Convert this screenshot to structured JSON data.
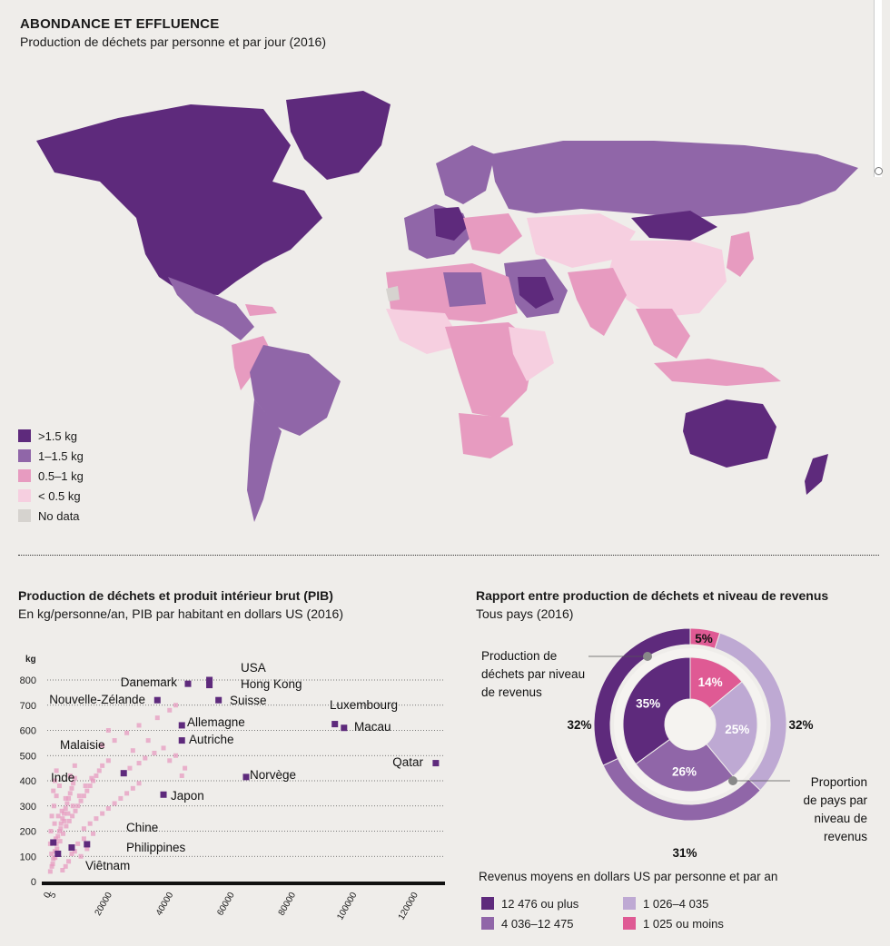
{
  "header": {
    "title": "ABONDANCE ET EFFLUENCE",
    "subtitle": "Production de déchets par personne et par jour (2016)"
  },
  "map_legend": [
    {
      "label": ">1.5 kg",
      "color": "#5e2a7c"
    },
    {
      "label": "1–1.5 kg",
      "color": "#9066a8"
    },
    {
      "label": "0.5–1 kg",
      "color": "#e79bc0"
    },
    {
      "label": "< 0.5 kg",
      "color": "#f6cfe0"
    },
    {
      "label": "No data",
      "color": "#d6d3cf"
    }
  ],
  "scatter_section": {
    "title": "Production de déchets et produit intérieur brut (PIB)",
    "subtitle": "En kg/personne/an, PIB par habitant en dollars US (2016)"
  },
  "donut_section": {
    "title": "Rapport entre production de déchets et niveau de revenus",
    "subtitle": "Tous pays (2016)",
    "outer_label": "Production de déchets par niveau de revenus",
    "inner_label": "Proportion de pays par niveau de revenus",
    "income_legend_title": "Revenus moyens en dollars US par personne et par an"
  },
  "chart_data": [
    {
      "type": "scatter",
      "ylabel": "kg",
      "ylim": [
        0,
        800
      ],
      "xlim": [
        0,
        130000
      ],
      "y_ticks": [
        0,
        100,
        200,
        300,
        400,
        500,
        600,
        700,
        800
      ],
      "x_ticks": [
        0,
        5,
        20000,
        40000,
        60000,
        80000,
        100000,
        120000
      ],
      "labeled_points": [
        {
          "name": "USA",
          "x": 53000,
          "y": 800
        },
        {
          "name": "Hong Kong",
          "x": 53000,
          "y": 780
        },
        {
          "name": "Danemark",
          "x": 46000,
          "y": 785
        },
        {
          "name": "Nouvelle-Zélande",
          "x": 36000,
          "y": 720
        },
        {
          "name": "Suisse",
          "x": 56000,
          "y": 720
        },
        {
          "name": "Luxembourg",
          "x": 94000,
          "y": 625
        },
        {
          "name": "Macau",
          "x": 97000,
          "y": 610
        },
        {
          "name": "Allemagne",
          "x": 44000,
          "y": 620
        },
        {
          "name": "Autriche",
          "x": 44000,
          "y": 560
        },
        {
          "name": "Qatar",
          "x": 127000,
          "y": 470
        },
        {
          "name": "Malaisie",
          "x": 25000,
          "y": 430
        },
        {
          "name": "Norvège",
          "x": 65000,
          "y": 415
        },
        {
          "name": "Inde",
          "x": 2000,
          "y": 155
        },
        {
          "name": "Japon",
          "x": 38000,
          "y": 345
        },
        {
          "name": "Chine",
          "x": 8000,
          "y": 135
        },
        {
          "name": "Philippines",
          "x": 13000,
          "y": 148
        },
        {
          "name": "Viêtnam",
          "x": 3500,
          "y": 110
        }
      ],
      "other_points": [
        [
          1500,
          60
        ],
        [
          2000,
          90
        ],
        [
          2500,
          120
        ],
        [
          3000,
          150
        ],
        [
          3500,
          180
        ],
        [
          4000,
          200
        ],
        [
          4500,
          230
        ],
        [
          5000,
          250
        ],
        [
          5500,
          270
        ],
        [
          6000,
          290
        ],
        [
          6500,
          310
        ],
        [
          7000,
          330
        ],
        [
          7500,
          350
        ],
        [
          8000,
          370
        ],
        [
          8500,
          390
        ],
        [
          9000,
          410
        ],
        [
          2200,
          300
        ],
        [
          3000,
          340
        ],
        [
          4000,
          380
        ],
        [
          2500,
          400
        ],
        [
          1000,
          40
        ],
        [
          1800,
          70
        ],
        [
          2600,
          95
        ],
        [
          3200,
          130
        ],
        [
          4200,
          160
        ],
        [
          5200,
          190
        ],
        [
          6200,
          220
        ],
        [
          7200,
          240
        ],
        [
          8200,
          260
        ],
        [
          9200,
          280
        ],
        [
          10000,
          300
        ],
        [
          11000,
          320
        ],
        [
          12000,
          340
        ],
        [
          13000,
          360
        ],
        [
          14000,
          380
        ],
        [
          15000,
          400
        ],
        [
          16000,
          420
        ],
        [
          17000,
          440
        ],
        [
          18000,
          460
        ],
        [
          20000,
          480
        ],
        [
          12000,
          210
        ],
        [
          14000,
          230
        ],
        [
          16000,
          250
        ],
        [
          18000,
          270
        ],
        [
          20000,
          290
        ],
        [
          22000,
          310
        ],
        [
          24000,
          330
        ],
        [
          26000,
          350
        ],
        [
          28000,
          370
        ],
        [
          30000,
          390
        ],
        [
          10000,
          150
        ],
        [
          12000,
          170
        ],
        [
          15000,
          190
        ],
        [
          9000,
          120
        ],
        [
          11000,
          100
        ],
        [
          7000,
          80
        ],
        [
          6000,
          60
        ],
        [
          5000,
          45
        ],
        [
          8000,
          110
        ],
        [
          13000,
          130
        ],
        [
          25000,
          430
        ],
        [
          27000,
          450
        ],
        [
          30000,
          470
        ],
        [
          32000,
          490
        ],
        [
          35000,
          510
        ],
        [
          38000,
          530
        ],
        [
          40000,
          480
        ],
        [
          42000,
          500
        ],
        [
          45000,
          450
        ],
        [
          44000,
          420
        ],
        [
          22000,
          560
        ],
        [
          26000,
          590
        ],
        [
          30000,
          620
        ],
        [
          36000,
          650
        ],
        [
          40000,
          680
        ],
        [
          42000,
          700
        ],
        [
          20000,
          600
        ],
        [
          18000,
          540
        ],
        [
          33000,
          560
        ],
        [
          28000,
          520
        ],
        [
          3000,
          440
        ],
        [
          2000,
          360
        ],
        [
          1500,
          260
        ],
        [
          1200,
          200
        ],
        [
          2400,
          230
        ],
        [
          3600,
          260
        ],
        [
          4800,
          280
        ],
        [
          6000,
          330
        ],
        [
          7500,
          420
        ],
        [
          9000,
          460
        ],
        [
          1000,
          150
        ],
        [
          1400,
          110
        ],
        [
          2800,
          170
        ],
        [
          4400,
          210
        ],
        [
          5600,
          240
        ],
        [
          6800,
          270
        ],
        [
          8400,
          300
        ],
        [
          10500,
          340
        ],
        [
          12500,
          380
        ],
        [
          14500,
          410
        ]
      ]
    },
    {
      "type": "pie",
      "title": "Rapport entre production de déchets et niveau de revenus",
      "series": [
        {
          "name": "Production de déchets par niveau de revenus",
          "values": [
            5,
            32,
            31,
            32
          ],
          "labels": [
            "5%",
            "32%",
            "31%",
            "32%"
          ],
          "categories": [
            "1025 ou moins",
            "1026–4035",
            "4036–12475",
            "12476 ou plus"
          ]
        },
        {
          "name": "Proportion de pays par niveau de revenus",
          "values": [
            14,
            25,
            26,
            35
          ],
          "labels": [
            "14%",
            "25%",
            "26%",
            "35%"
          ],
          "categories": [
            "1025 ou moins",
            "1026–4035",
            "4036–12475",
            "12476 ou plus"
          ]
        }
      ],
      "colors": [
        "#df5a94",
        "#bea9d3",
        "#9066a8",
        "#5e2a7c"
      ]
    }
  ],
  "income_legend": [
    {
      "label": "12 476 ou plus",
      "color": "#5e2a7c"
    },
    {
      "label": "1 026–4 035",
      "color": "#bea9d3"
    },
    {
      "label": "4 036–12 475",
      "color": "#9066a8"
    },
    {
      "label": "1 025 ou moins",
      "color": "#df5a94"
    }
  ]
}
